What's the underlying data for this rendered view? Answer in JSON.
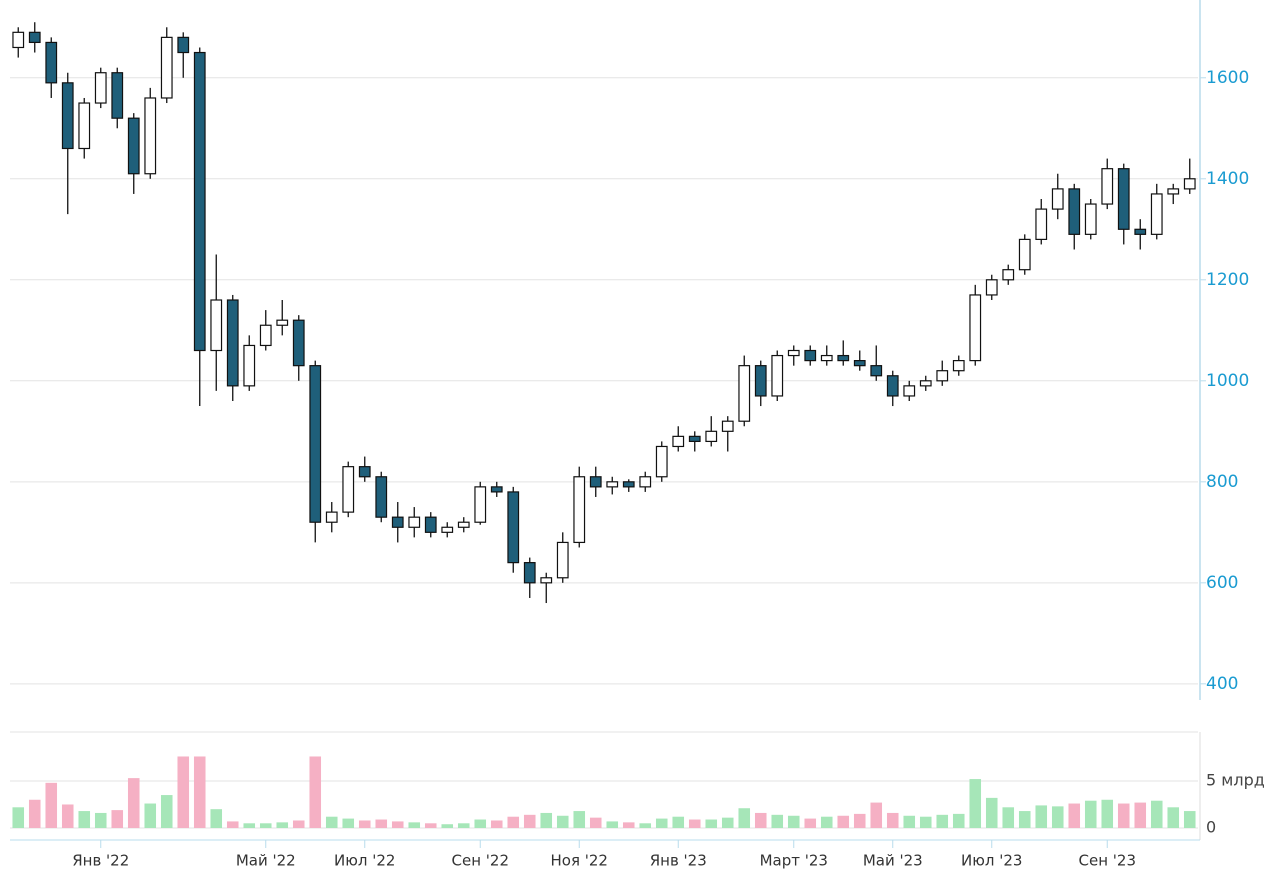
{
  "chart_data": [
    {
      "type": "candlestick",
      "open": [
        1660,
        1690,
        1670,
        1590,
        1460,
        1550,
        1610,
        1520,
        1410,
        1560,
        1680,
        1650,
        1060,
        1160,
        990,
        1070,
        1110,
        1120,
        1030,
        720,
        740,
        830,
        810,
        730,
        710,
        730,
        700,
        710,
        720,
        790,
        780,
        640,
        600,
        610,
        680,
        810,
        790,
        800,
        790,
        810,
        870,
        890,
        880,
        900,
        920,
        1030,
        970,
        1050,
        1060,
        1040,
        1050,
        1040,
        1030,
        1010,
        970,
        990,
        1000,
        1020,
        1040,
        1170,
        1200,
        1220,
        1280,
        1340,
        1380,
        1290,
        1350,
        1420,
        1300,
        1290,
        1370,
        1380
      ],
      "high": [
        1700,
        1710,
        1680,
        1610,
        1560,
        1620,
        1620,
        1530,
        1580,
        1700,
        1690,
        1660,
        1250,
        1170,
        1090,
        1140,
        1160,
        1130,
        1040,
        760,
        840,
        850,
        820,
        760,
        750,
        740,
        720,
        730,
        800,
        800,
        790,
        650,
        620,
        700,
        830,
        830,
        810,
        805,
        820,
        880,
        910,
        900,
        930,
        930,
        1050,
        1040,
        1060,
        1070,
        1070,
        1070,
        1080,
        1060,
        1070,
        1020,
        1000,
        1010,
        1040,
        1050,
        1190,
        1210,
        1230,
        1290,
        1360,
        1410,
        1390,
        1360,
        1440,
        1430,
        1320,
        1390,
        1390,
        1440
      ],
      "low": [
        1640,
        1650,
        1560,
        1330,
        1440,
        1540,
        1500,
        1370,
        1400,
        1550,
        1600,
        950,
        980,
        960,
        980,
        1060,
        1090,
        1000,
        680,
        700,
        730,
        800,
        720,
        680,
        690,
        690,
        690,
        700,
        715,
        770,
        620,
        570,
        560,
        600,
        670,
        770,
        775,
        780,
        780,
        800,
        860,
        860,
        870,
        860,
        910,
        950,
        960,
        1030,
        1030,
        1030,
        1030,
        1020,
        1000,
        950,
        960,
        980,
        990,
        1010,
        1030,
        1160,
        1190,
        1210,
        1270,
        1320,
        1260,
        1280,
        1340,
        1270,
        1260,
        1280,
        1350,
        1370
      ],
      "close": [
        1690,
        1670,
        1590,
        1460,
        1550,
        1610,
        1520,
        1410,
        1560,
        1680,
        1650,
        1060,
        1160,
        990,
        1070,
        1110,
        1120,
        1030,
        720,
        740,
        830,
        810,
        730,
        710,
        730,
        700,
        710,
        720,
        790,
        780,
        640,
        600,
        610,
        680,
        810,
        790,
        800,
        790,
        810,
        870,
        890,
        880,
        900,
        920,
        1030,
        970,
        1050,
        1060,
        1040,
        1050,
        1040,
        1030,
        1010,
        970,
        990,
        1000,
        1020,
        1040,
        1170,
        1200,
        1220,
        1280,
        1340,
        1380,
        1290,
        1350,
        1420,
        1300,
        1290,
        1370,
        1380,
        1400
      ],
      "up_color": "#ffffff",
      "down_color": "#1f5f7a",
      "color": "#111111",
      "ylim": [
        368,
        1754
      ],
      "yticks": [
        400,
        600,
        800,
        1000,
        1200,
        1400,
        1600
      ],
      "grid": true
    },
    {
      "type": "bar",
      "categories": [
        null,
        null,
        null,
        null,
        null,
        "Янв '22",
        null,
        null,
        null,
        null,
        null,
        null,
        null,
        null,
        null,
        "Май '22",
        null,
        null,
        null,
        null,
        null,
        "Июл '22",
        null,
        null,
        null,
        null,
        null,
        null,
        "Сен '22",
        null,
        null,
        null,
        null,
        null,
        "Ноя '22",
        null,
        null,
        null,
        null,
        null,
        "Янв '23",
        null,
        null,
        null,
        null,
        null,
        null,
        "Март '23",
        null,
        null,
        null,
        null,
        null,
        "Май '23",
        null,
        null,
        null,
        null,
        null,
        "Июл '23",
        null,
        null,
        null,
        null,
        null,
        null,
        "Сен '23",
        null,
        null,
        null,
        null,
        null
      ],
      "values": [
        2.2,
        3.0,
        4.8,
        2.5,
        1.8,
        1.6,
        1.9,
        5.3,
        2.6,
        3.5,
        7.6,
        7.6,
        2.0,
        0.7,
        0.5,
        0.5,
        0.6,
        0.8,
        7.6,
        1.2,
        1.0,
        0.8,
        0.9,
        0.7,
        0.6,
        0.5,
        0.4,
        0.5,
        0.9,
        0.8,
        1.2,
        1.4,
        1.6,
        1.3,
        1.8,
        1.1,
        0.7,
        0.6,
        0.5,
        1.0,
        1.2,
        0.9,
        0.9,
        1.1,
        2.1,
        1.6,
        1.4,
        1.3,
        1.0,
        1.2,
        1.3,
        1.5,
        2.7,
        1.6,
        1.3,
        1.2,
        1.4,
        1.5,
        5.2,
        3.2,
        2.2,
        1.8,
        2.4,
        2.3,
        2.6,
        2.9,
        3.0,
        2.6,
        2.7,
        2.9,
        2.2,
        1.8
      ],
      "up_color": "#a6e6b8",
      "down_color": "#f5b0c4",
      "ylim": [
        0,
        10.2
      ],
      "yticks": [
        0,
        {
          "value": 5,
          "label": "5 млрд"
        }
      ],
      "grid": true
    }
  ]
}
